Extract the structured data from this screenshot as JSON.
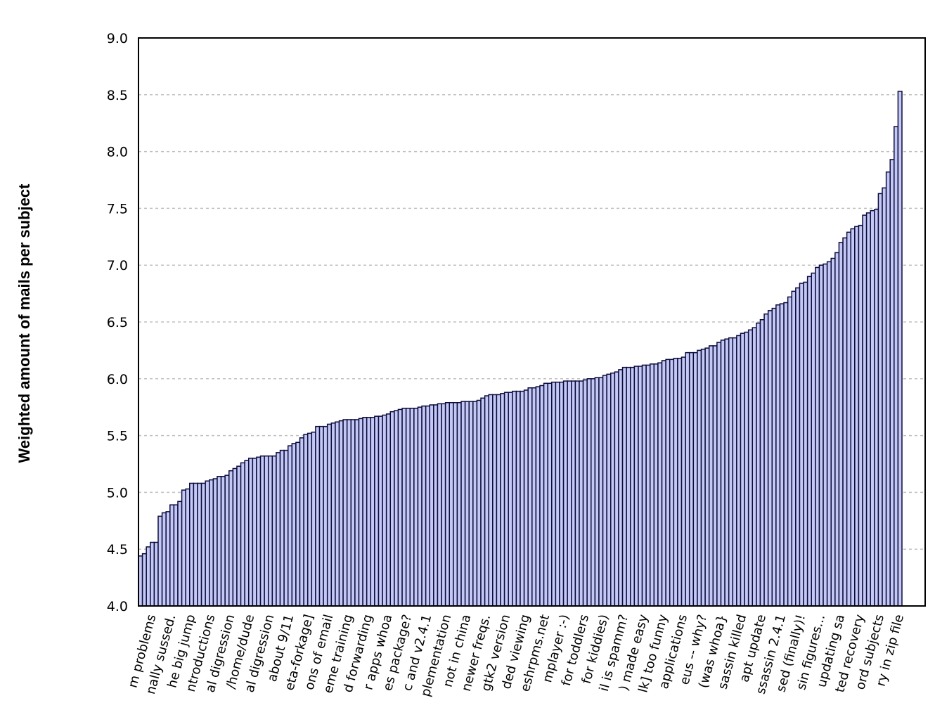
{
  "chart_data": {
    "type": "bar",
    "title": "",
    "xlabel": "",
    "ylabel": "Weighted amount of mails per subject",
    "ylim": [
      4.0,
      9.0
    ],
    "yticks": [
      "4.0",
      "4.5",
      "5.0",
      "5.5",
      "6.0",
      "6.5",
      "7.0",
      "7.5",
      "8.0",
      "8.5",
      "9.0"
    ],
    "grid": "horizontal dashed",
    "colors": {
      "bar_fill": "#c4c8f5",
      "bar_edge": "#0b0b3a",
      "grid": "#c0c0c0"
    },
    "label_every": 5,
    "label_offset": 3,
    "tick_labels": [
      "m problems",
      "nally sussed.",
      "he big jump",
      "ntroductions",
      "al digression",
      "/home/dude",
      "al digression",
      "about 9/11",
      "eta-forkage]",
      "ons of email",
      "eme training",
      "d forwarding",
      "r apps whoa",
      "es package?",
      "c and v2.4.1",
      "plementation",
      "not in china",
      "newer freqs.",
      "gtk2 version",
      "ded viewing",
      "eshrpms.net",
      "mplayer :-)",
      "for toddlers",
      "for kiddies)",
      "il is spamm?",
      ") made easy",
      "lk] too funny",
      "applications",
      "eus -- why?",
      "(was whoa}",
      "sassin killed",
      "apt update",
      "ssassin 2.4.1",
      "sed (finally)!",
      "sin figures...",
      "updating sa",
      "ted recovery",
      "ord subjects",
      "ry in zip file"
    ],
    "values": [
      4.44,
      4.46,
      4.52,
      4.56,
      4.56,
      4.79,
      4.82,
      4.83,
      4.89,
      4.89,
      4.92,
      5.02,
      5.03,
      5.08,
      5.08,
      5.08,
      5.08,
      5.1,
      5.11,
      5.12,
      5.14,
      5.14,
      5.15,
      5.19,
      5.21,
      5.23,
      5.26,
      5.28,
      5.3,
      5.3,
      5.31,
      5.32,
      5.32,
      5.32,
      5.32,
      5.35,
      5.37,
      5.37,
      5.41,
      5.43,
      5.44,
      5.48,
      5.51,
      5.52,
      5.53,
      5.58,
      5.58,
      5.58,
      5.6,
      5.61,
      5.62,
      5.63,
      5.64,
      5.64,
      5.64,
      5.64,
      5.65,
      5.66,
      5.66,
      5.66,
      5.67,
      5.67,
      5.68,
      5.69,
      5.71,
      5.72,
      5.73,
      5.74,
      5.74,
      5.74,
      5.74,
      5.75,
      5.76,
      5.76,
      5.77,
      5.77,
      5.78,
      5.78,
      5.79,
      5.79,
      5.79,
      5.79,
      5.8,
      5.8,
      5.8,
      5.8,
      5.81,
      5.83,
      5.85,
      5.86,
      5.86,
      5.86,
      5.87,
      5.88,
      5.88,
      5.89,
      5.89,
      5.89,
      5.9,
      5.92,
      5.92,
      5.93,
      5.94,
      5.96,
      5.96,
      5.97,
      5.97,
      5.97,
      5.98,
      5.98,
      5.98,
      5.98,
      5.98,
      5.99,
      6.0,
      6.0,
      6.01,
      6.01,
      6.03,
      6.04,
      6.05,
      6.06,
      6.08,
      6.1,
      6.1,
      6.1,
      6.11,
      6.11,
      6.12,
      6.12,
      6.13,
      6.13,
      6.14,
      6.16,
      6.17,
      6.17,
      6.18,
      6.18,
      6.19,
      6.23,
      6.23,
      6.23,
      6.25,
      6.26,
      6.27,
      6.29,
      6.29,
      6.32,
      6.34,
      6.35,
      6.36,
      6.36,
      6.38,
      6.4,
      6.41,
      6.43,
      6.45,
      6.49,
      6.52,
      6.57,
      6.6,
      6.62,
      6.65,
      6.66,
      6.67,
      6.72,
      6.77,
      6.8,
      6.84,
      6.85,
      6.9,
      6.93,
      6.98,
      7.0,
      7.01,
      7.03,
      7.06,
      7.11,
      7.2,
      7.24,
      7.29,
      7.32,
      7.34,
      7.35,
      7.44,
      7.46,
      7.48,
      7.49,
      7.63,
      7.68,
      7.82,
      7.93,
      8.22,
      8.53
    ]
  }
}
